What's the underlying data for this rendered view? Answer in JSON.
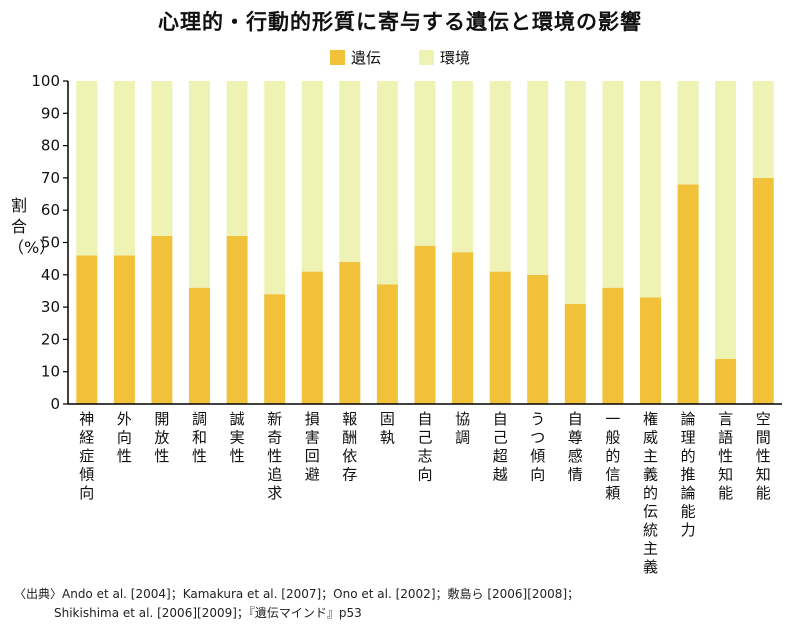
{
  "chart_data": {
    "type": "bar",
    "stacked": true,
    "title": "心理的・行動的形質に寄与する遺伝と環境の影響",
    "ylabel_chars": [
      "割",
      "合",
      "（%）"
    ],
    "ylim": [
      0,
      100
    ],
    "yticks": [
      0,
      10,
      20,
      30,
      40,
      50,
      60,
      70,
      80,
      90,
      100
    ],
    "grid": false,
    "legend_position": "top-center",
    "categories": [
      "神経症傾向",
      "外向性",
      "開放性",
      "調和性",
      "誠実性",
      "新奇性追求",
      "損害回避",
      "報酬依存",
      "固執",
      "自己志向",
      "協調",
      "自己超越",
      "うつ傾向",
      "自尊感情",
      "一般的信頼",
      "権威主義的伝統主義",
      "論理的推論能力",
      "言語性知能",
      "空間性知能"
    ],
    "series": [
      {
        "name": "遺伝",
        "color": "#f2c13a",
        "values": [
          46,
          46,
          52,
          36,
          52,
          34,
          41,
          44,
          37,
          49,
          47,
          41,
          40,
          31,
          36,
          33,
          68,
          14,
          70
        ]
      },
      {
        "name": "環境",
        "color": "#eef3b3",
        "values": [
          54,
          54,
          48,
          64,
          48,
          66,
          59,
          56,
          63,
          51,
          53,
          59,
          60,
          69,
          64,
          67,
          32,
          86,
          30
        ]
      }
    ]
  },
  "source": {
    "line1": "〈出典〉Ando et al. [2004]；Kamakura et al. [2007]；Ono et al. [2002]；敷島ら [2006][2008]；",
    "line2": "Shikishima et al. [2006][2009]；『遺伝マインド』p53"
  }
}
